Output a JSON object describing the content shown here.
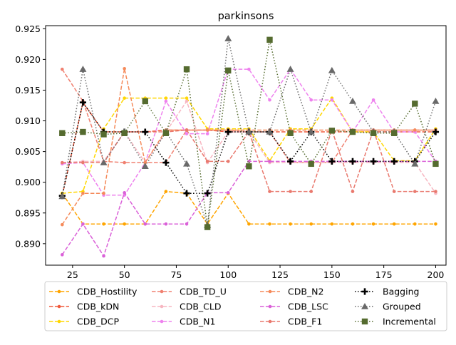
{
  "chart_data": {
    "type": "line",
    "title": "parkinsons",
    "xlabel": "",
    "ylabel": "",
    "xlim": [
      12,
      205
    ],
    "ylim": [
      0.8865,
      0.9255
    ],
    "x_ticks": [
      25,
      50,
      75,
      100,
      125,
      150,
      175,
      200
    ],
    "y_ticks": [
      0.89,
      0.895,
      0.9,
      0.905,
      0.91,
      0.915,
      0.92,
      0.925
    ],
    "grid": false,
    "legend_position": "bottom",
    "x": [
      20,
      30,
      40,
      50,
      60,
      70,
      80,
      90,
      100,
      110,
      120,
      130,
      140,
      150,
      160,
      170,
      180,
      190,
      200
    ],
    "series": [
      {
        "name": "CDB_Hostility",
        "color": "#FFA500",
        "linestyle": "dashed",
        "marker": "circle",
        "values": [
          0.8982,
          0.8932,
          0.8932,
          0.8932,
          0.8932,
          0.8985,
          0.8982,
          0.8932,
          0.8982,
          0.8932,
          0.8932,
          0.8932,
          0.8932,
          0.8932,
          0.8932,
          0.8932,
          0.8932,
          0.8932,
          0.8932
        ]
      },
      {
        "name": "CDB_kDN",
        "color": "#F05A3C",
        "linestyle": "dashed",
        "marker": "circle",
        "values": [
          0.8978,
          0.913,
          0.9082,
          0.9082,
          0.9082,
          0.9085,
          0.9085,
          0.9085,
          0.9082,
          0.9082,
          0.9082,
          0.9082,
          0.9082,
          0.9082,
          0.9082,
          0.9082,
          0.9082,
          0.9082,
          0.9082
        ]
      },
      {
        "name": "CDB_DCP",
        "color": "#FFD700",
        "linestyle": "dashed",
        "marker": "circle",
        "values": [
          0.8982,
          0.8985,
          0.9087,
          0.9137,
          0.9137,
          0.9137,
          0.9137,
          0.9087,
          0.9087,
          0.9087,
          0.9035,
          0.9087,
          0.9087,
          0.9137,
          0.9082,
          0.9082,
          0.9035,
          0.9035,
          0.9087
        ]
      },
      {
        "name": "CDB_TD_U",
        "color": "#F08070",
        "linestyle": "dashed",
        "marker": "circle",
        "values": [
          0.9184,
          0.9132,
          0.9034,
          0.9032,
          0.9032,
          0.9032,
          0.9085,
          0.9085,
          0.9085,
          0.9082,
          0.9082,
          0.9032,
          0.9032,
          0.9032,
          0.9085,
          0.9085,
          0.9085,
          0.9085,
          0.9085
        ]
      },
      {
        "name": "CDB_CLD",
        "color": "#F7B6C1",
        "linestyle": "dashed",
        "marker": "circle",
        "values": [
          0.9032,
          0.9034,
          0.9034,
          0.9082,
          0.9032,
          0.9082,
          0.9132,
          0.9032,
          0.9082,
          0.9082,
          0.9032,
          0.9032,
          0.9032,
          0.9032,
          0.9032,
          0.9032,
          0.9032,
          0.9032,
          0.8982
        ]
      },
      {
        "name": "CDB_N1",
        "color": "#EE82EE",
        "linestyle": "dashed",
        "marker": "circle",
        "values": [
          0.903,
          0.9032,
          0.8979,
          0.8979,
          0.9032,
          0.9132,
          0.9079,
          0.9079,
          0.9184,
          0.9184,
          0.9134,
          0.9184,
          0.9134,
          0.9134,
          0.9082,
          0.9134,
          0.9082,
          0.9082,
          0.9034
        ]
      },
      {
        "name": "CDB_N2",
        "color": "#F58A5A",
        "linestyle": "dashed",
        "marker": "circle",
        "values": [
          0.8931,
          0.8982,
          0.8982,
          0.9185,
          0.9032,
          0.9085,
          0.9085,
          0.9085,
          0.9085,
          0.9085,
          0.9085,
          0.9085,
          0.9085,
          0.9085,
          0.9085,
          0.9085,
          0.9085,
          0.9085,
          0.9085
        ]
      },
      {
        "name": "CDB_LSC",
        "color": "#DA60D8",
        "linestyle": "dashed",
        "marker": "circle",
        "values": [
          0.8882,
          0.8932,
          0.888,
          0.8983,
          0.8932,
          0.8932,
          0.8932,
          0.8983,
          0.8983,
          0.9034,
          0.9034,
          0.9034,
          0.9034,
          0.9034,
          0.9034,
          0.9034,
          0.9034,
          0.9034,
          0.9034
        ]
      },
      {
        "name": "CDB_F1",
        "color": "#E9796E",
        "linestyle": "dashed",
        "marker": "circle",
        "values": [
          0.9032,
          0.9032,
          0.9032,
          0.9082,
          0.9082,
          0.9082,
          0.9085,
          0.9034,
          0.9034,
          0.9082,
          0.8985,
          0.8985,
          0.8985,
          0.9085,
          0.8985,
          0.9085,
          0.8985,
          0.8985,
          0.8985
        ]
      },
      {
        "name": "Bagging",
        "color": "#000000",
        "linestyle": "dotted",
        "marker": "plus",
        "values": [
          0.8978,
          0.913,
          0.9082,
          0.9082,
          0.9082,
          0.9032,
          0.8982,
          0.8982,
          0.9082,
          0.9082,
          0.9082,
          0.9034,
          0.9082,
          0.9034,
          0.9034,
          0.9034,
          0.9034,
          0.9034,
          0.9082
        ]
      },
      {
        "name": "Grouped",
        "color": "#696969",
        "linestyle": "dotted",
        "marker": "triangle",
        "values": [
          0.8977,
          0.9184,
          0.9032,
          0.9082,
          0.9026,
          0.9082,
          0.903,
          0.893,
          0.9234,
          0.9082,
          0.9082,
          0.9184,
          0.9082,
          0.9182,
          0.9132,
          0.9082,
          0.9082,
          0.903,
          0.9132
        ]
      },
      {
        "name": "Incremental",
        "color": "#556B2F",
        "linestyle": "dotted",
        "marker": "square",
        "values": [
          0.908,
          0.9082,
          0.9078,
          0.908,
          0.9132,
          0.908,
          0.9184,
          0.8927,
          0.9182,
          0.9026,
          0.9232,
          0.908,
          0.903,
          0.9084,
          0.9082,
          0.908,
          0.908,
          0.9128,
          0.903
        ]
      }
    ]
  }
}
